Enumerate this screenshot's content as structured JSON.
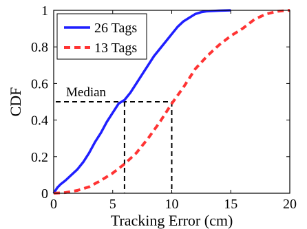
{
  "chart_data": {
    "type": "line",
    "xlabel": "Tracking Error (cm)",
    "ylabel": "CDF",
    "xlim": [
      0,
      20
    ],
    "ylim": [
      0,
      1
    ],
    "xticks": [
      0,
      5,
      10,
      15,
      20
    ],
    "xtick_labels": [
      "0",
      "5",
      "10",
      "15",
      "20"
    ],
    "yticks": [
      0,
      0.2,
      0.4,
      0.6,
      0.8,
      1
    ],
    "ytick_labels": [
      "0",
      "0.2",
      "0.4",
      "0.6",
      "0.8",
      "1"
    ],
    "grid": false,
    "legend_position": "top-left",
    "series": [
      {
        "name": "26 Tags",
        "color": "#1f1fff",
        "style": "solid",
        "x": [
          0,
          0.3,
          0.6,
          1.0,
          1.5,
          2.0,
          2.5,
          3.0,
          3.5,
          4.0,
          4.5,
          5.0,
          5.5,
          6.0,
          6.5,
          7.0,
          7.5,
          8.0,
          8.5,
          9.0,
          9.5,
          10.0,
          10.5,
          11.0,
          11.5,
          12.0,
          12.5,
          13.0,
          14.0,
          15.0
        ],
        "y": [
          0,
          0.03,
          0.05,
          0.07,
          0.1,
          0.13,
          0.17,
          0.22,
          0.28,
          0.33,
          0.39,
          0.44,
          0.49,
          0.51,
          0.55,
          0.6,
          0.65,
          0.7,
          0.75,
          0.79,
          0.83,
          0.87,
          0.91,
          0.94,
          0.96,
          0.98,
          0.99,
          0.995,
          0.998,
          1.0
        ]
      },
      {
        "name": "13 Tags",
        "color": "#ff3333",
        "style": "dashed",
        "x": [
          0,
          1.0,
          2.0,
          3.0,
          4.0,
          5.0,
          6.0,
          7.0,
          8.0,
          9.0,
          10.0,
          11.0,
          12.0,
          13.0,
          14.0,
          15.0,
          16.0,
          17.0,
          18.0,
          19.0,
          20.0
        ],
        "y": [
          0,
          0.004,
          0.015,
          0.035,
          0.07,
          0.11,
          0.16,
          0.22,
          0.3,
          0.39,
          0.49,
          0.58,
          0.68,
          0.75,
          0.81,
          0.86,
          0.9,
          0.95,
          0.98,
          0.995,
          1.0
        ]
      }
    ],
    "annotations": [
      {
        "text": "Median",
        "median_y": 0.5,
        "median_x_values": [
          6,
          10
        ]
      }
    ]
  }
}
